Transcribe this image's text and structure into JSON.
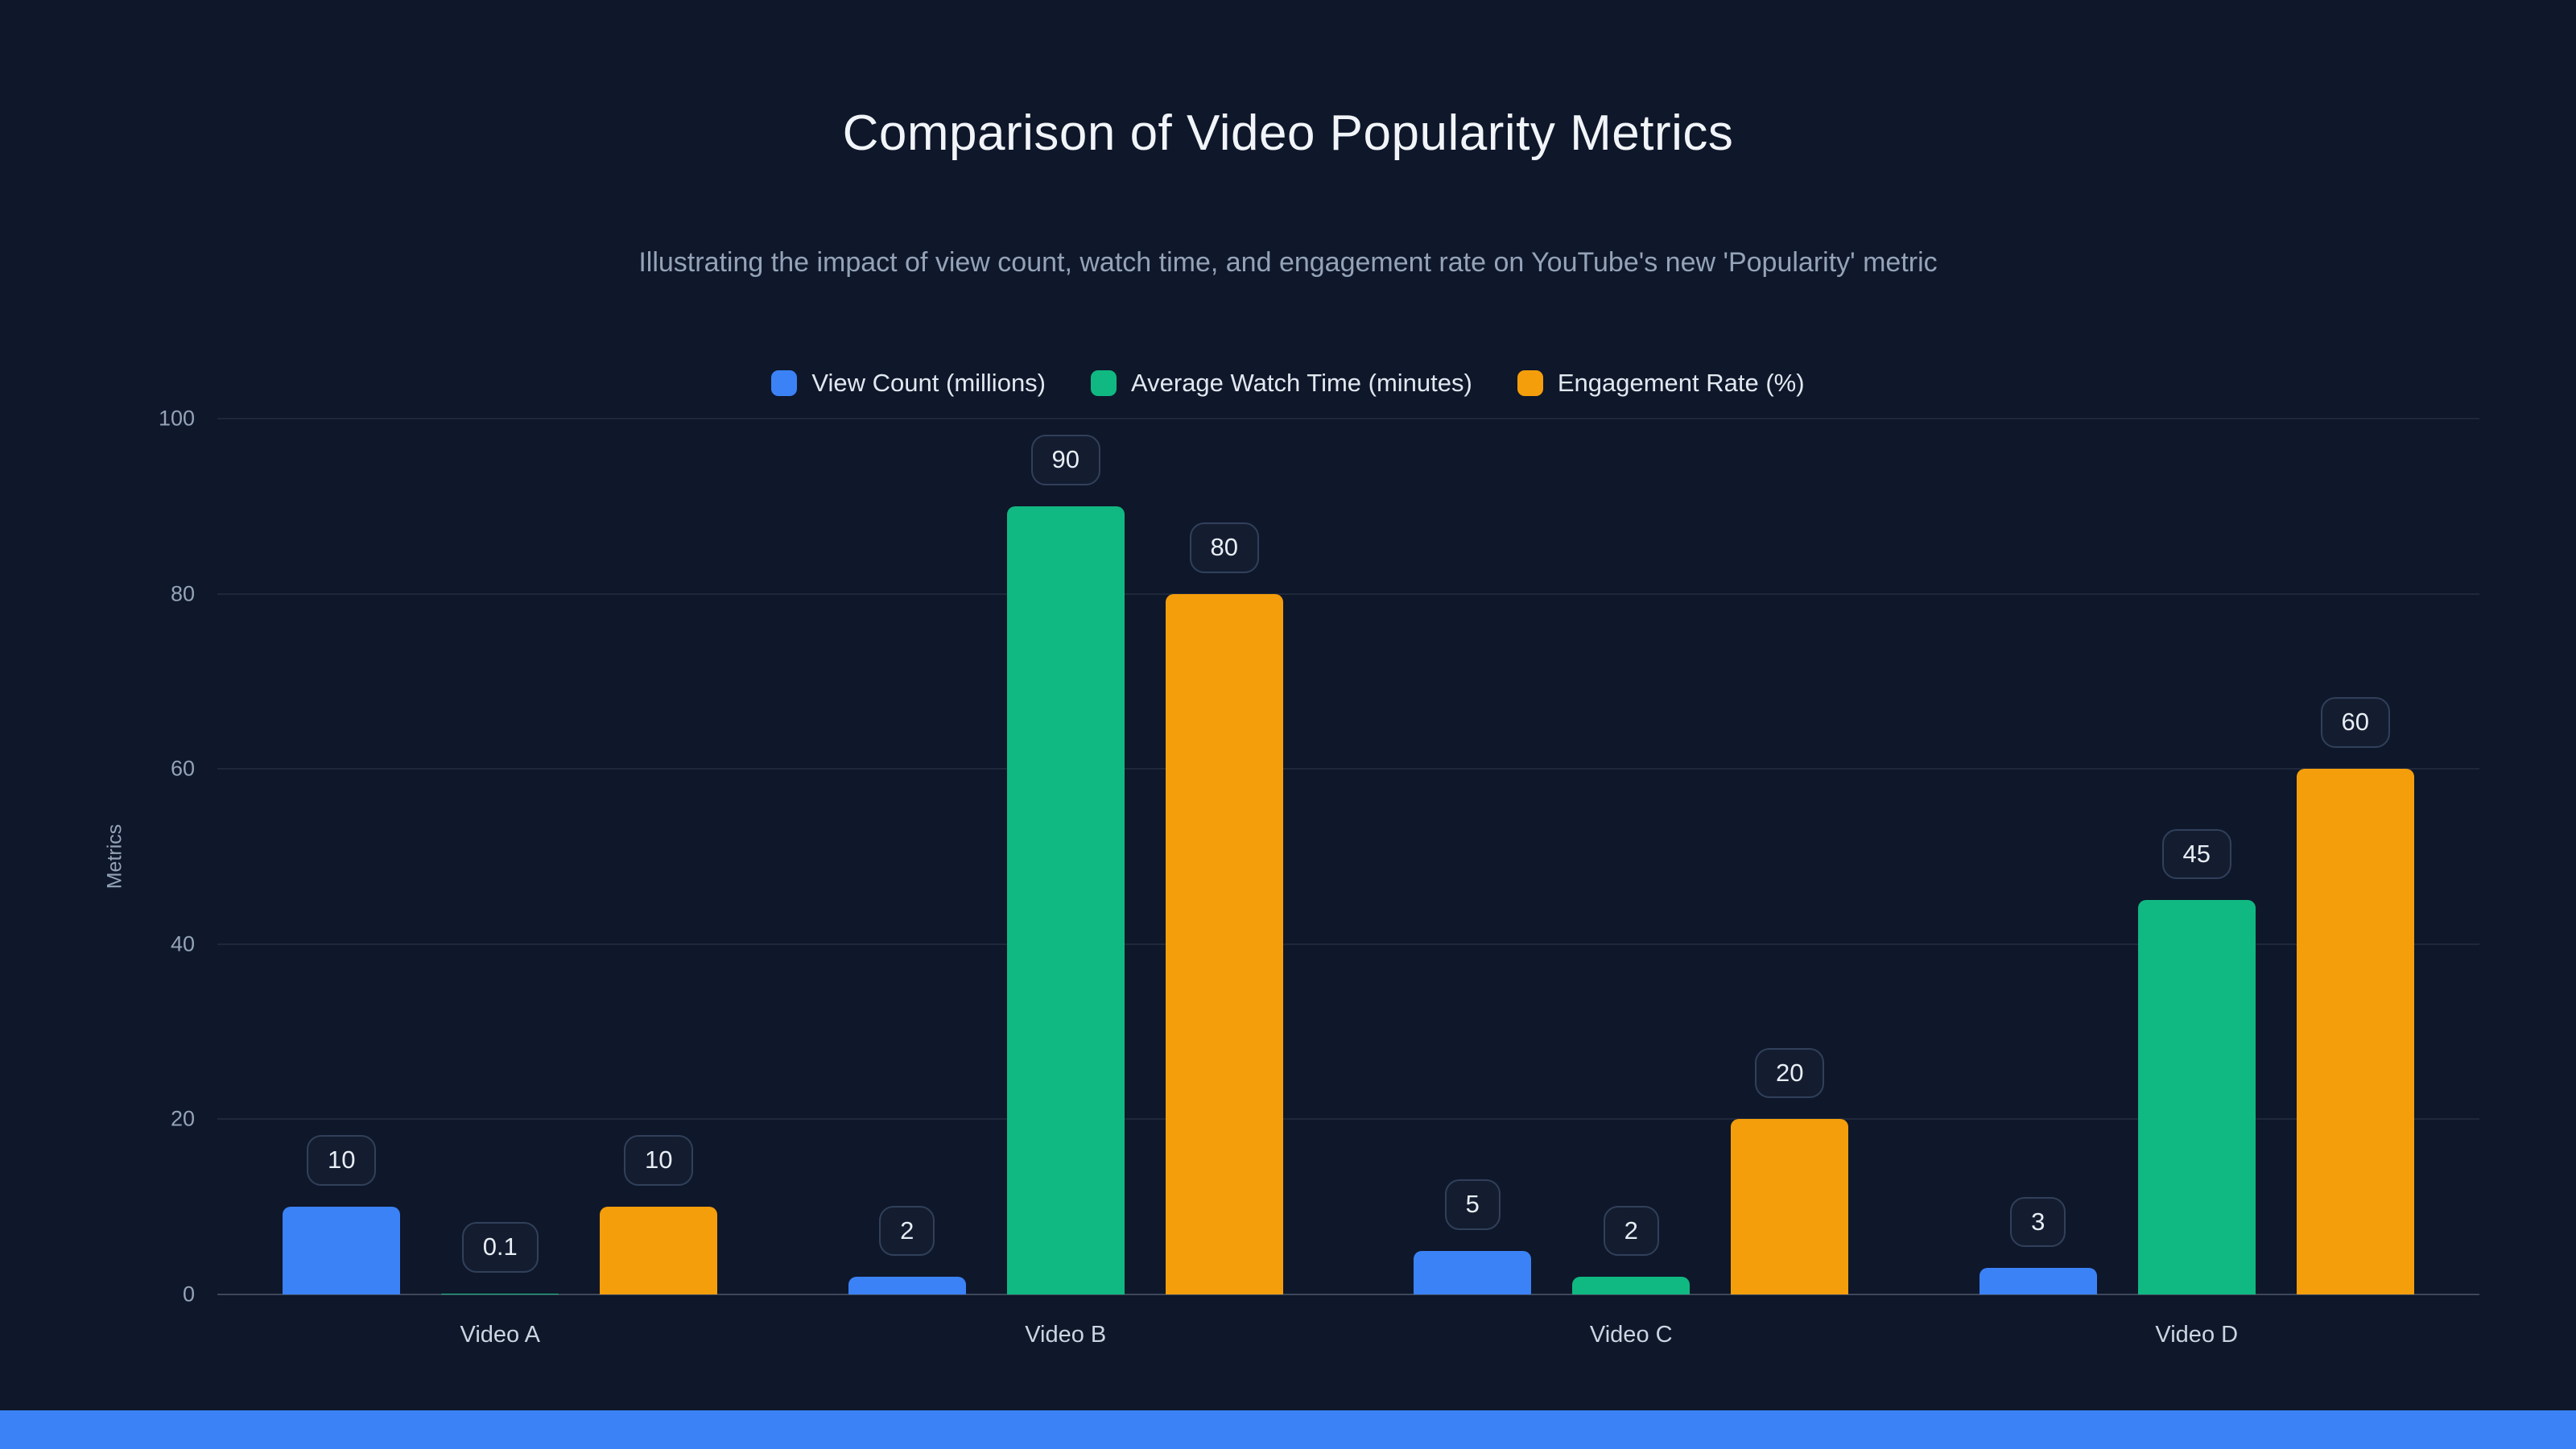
{
  "chart_data": {
    "type": "bar",
    "title": "Comparison of Video Popularity Metrics",
    "subtitle": "Illustrating the impact of view count, watch time, and engagement rate on YouTube's new 'Popularity' metric",
    "ylabel": "Metrics",
    "ylim": [
      0,
      100
    ],
    "yticks": [
      0,
      20,
      40,
      60,
      80,
      100
    ],
    "grid": true,
    "legend_position": "top",
    "categories": [
      "Video A",
      "Video B",
      "Video C",
      "Video D"
    ],
    "series": [
      {
        "name": "View Count (millions)",
        "color": "#3b82f6",
        "values": [
          10,
          2,
          5,
          3
        ]
      },
      {
        "name": "Average Watch Time (minutes)",
        "color": "#10b981",
        "values": [
          0.1,
          90,
          2,
          45
        ]
      },
      {
        "name": "Engagement Rate (%)",
        "color": "#f59e0b",
        "values": [
          10,
          80,
          20,
          60
        ]
      }
    ],
    "value_labels_shown": [
      "10",
      "0.1",
      "10",
      "2",
      "90",
      "80",
      "5",
      "2",
      "20",
      "3",
      "45",
      "60"
    ]
  },
  "colors": {
    "background": "#0f172a",
    "title_text": "#f1f5f9",
    "subtitle_text": "#94a3b8",
    "grid": "rgba(148,163,184,0.12)",
    "footer_accent": "#3b82f6"
  }
}
